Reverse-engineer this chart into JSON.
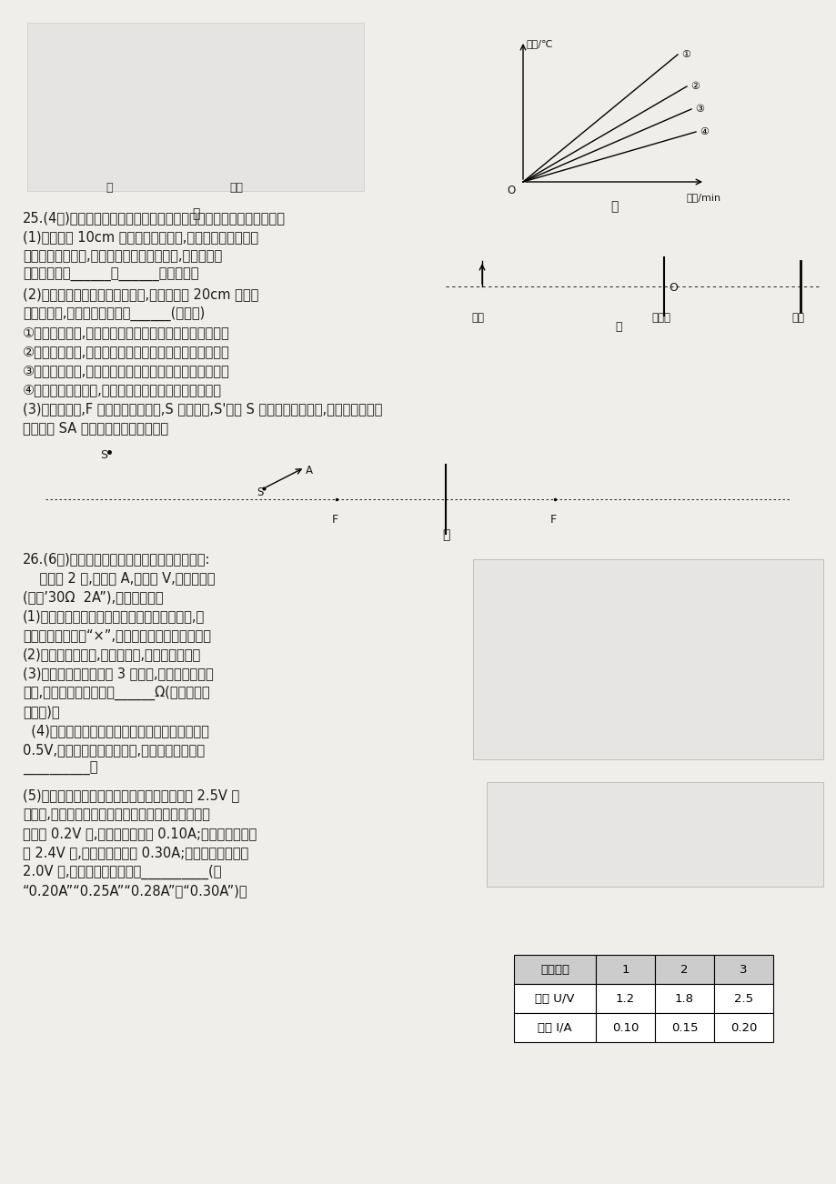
{
  "background_color": "#f0eeea",
  "page_width": 9.2,
  "page_height": 13.02,
  "text_color": "#1a1a1a",
  "title_text": "25.(4分)某同学用蜡烛、凸透镜和光屏等器材探究凸透镜成像的规律。",
  "q25_1": "(1)用焦距为 10cm 的凸透镜进行实验,蜡烛和凸透镜放置在",
  "q25_1b": "如图甲所示的位置,将光屏移动到图示位置时,光屏上得到",
  "q25_1c": "蜡烛清晰的、______、______立的实像。",
  "q25_2": "(2)保持凸透镜和光屏的位置不变,换用焦距为 20cm 的凸透",
  "q25_2b": "镜继继实验,下列说法正确的是______(填序号)",
  "q25_2_1": "①向左移动蜡烛,可以在光屏上得到蜡烛缩小的清晰的实像",
  "q25_2_2": "②向左移动蜡烛,可以在光屏上得到蜡烛放大的清晰的实像",
  "q25_2_3": "③向右移动蜡烛,可以在光屏上得到蜡烛放大的清晰的实像",
  "q25_2_4": "④无论怎样移动蜡烛,在光屏上都得不到蜡烛的清晰的像",
  "q25_3": "(3)如图乙所示,F 表示凸透镜的焦点,S 表示蜡烛,S'表示 S 经凸透镜所成的像,请在图乙中画出",
  "q25_3b": "入射光线 SA 经过凸透镜之后的光线。",
  "q26_title": "26.(6分)某同学用下列器材测量定值电阔的阻値:",
  "q26_tools": "    干电池 2 节,电流表 A,电压表 V,滑动变阔器",
  "q26_tools2": "(规格’30Ω  2A”),开关及导线。",
  "q26_1": "(1)他连接了如图所示的电路，接错了一根导线,请",
  "q26_1b": "你在这根导线上打“×”,并补画出正确的那根导线。",
  "q26_2": "(2)正确连接电路后,闭合开关前,应将滑动变阔器",
  "q26_3": "(3)他按正确步骤进行了 3 次实验,记录数据如下表",
  "q26_3b": "所示,此定值电阔的阻値为______Ω(结果保留一",
  "q26_3c": "位小数)。",
  "q26_4": "  (4)为了使并联在定値电阔两端的电压表的示数为",
  "q26_4b": "0.5V,在不增加器材的情况下,可以采取的措施是",
  "q26_4c": "__________。",
  "q26_5": "(5)他将上述实验中的定値电阔换成额定电压为 2.5V 的",
  "q26_5b": "小灯泡,用同样的方法测定小灯泡的电阔。当电压表的",
  "q26_5c": "示数为 0.2V 时,电流表的示数为 0.10A;当电压表的示数",
  "q26_5d": "为 2.4V 时,电流表的示数为 0.30A;则电压表的示数为",
  "q26_5e": "2.0V 时,电流表的示数可能为__________(填",
  "q26_5f": "“0.20A”“0.25A”“0.28A”或“0.30A”)。",
  "table_headers": [
    "数据序号",
    "1",
    "2",
    "3"
  ],
  "table_row1": [
    "电压 U/V",
    "1.2",
    "1.8",
    "2.5"
  ],
  "table_row2": [
    "电流 I/A",
    "0.10",
    "0.15",
    "0.20"
  ]
}
